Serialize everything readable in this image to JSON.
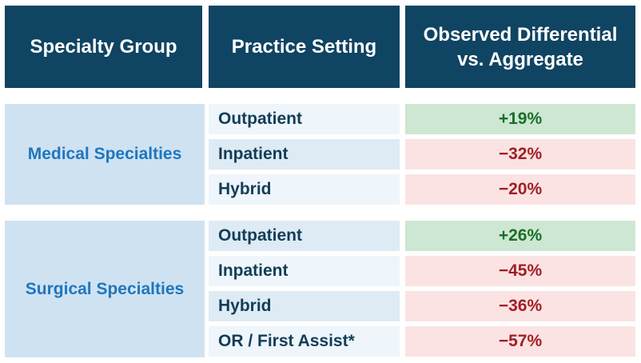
{
  "header": {
    "col1": "Specialty Group",
    "col2": "Practice Setting",
    "col3_line1": "Observed Differential",
    "col3_line2": "vs. Aggregate"
  },
  "groups": [
    {
      "name": "Medical Specialties",
      "rows": [
        {
          "setting": "Outpatient",
          "value": "+19%",
          "tone": "positive"
        },
        {
          "setting": "Inpatient",
          "value": "−32%",
          "tone": "negative"
        },
        {
          "setting": "Hybrid",
          "value": "−20%",
          "tone": "negative"
        }
      ]
    },
    {
      "name": "Surgical Specialties",
      "rows": [
        {
          "setting": "Outpatient",
          "value": "+26%",
          "tone": "positive"
        },
        {
          "setting": "Inpatient",
          "value": "−45%",
          "tone": "negative"
        },
        {
          "setting": "Hybrid",
          "value": "−36%",
          "tone": "negative"
        },
        {
          "setting": "OR / First Assist*",
          "value": "−57%",
          "tone": "negative"
        }
      ]
    }
  ],
  "colors": {
    "header_bg": "#0f4462",
    "group_bg": "#cfe2f2",
    "group_text": "#1f76bd",
    "positive_bg": "#cde7d2",
    "positive_text": "#1a6e2a",
    "negative_bg": "#fbe3e3",
    "negative_text": "#a01f24"
  }
}
